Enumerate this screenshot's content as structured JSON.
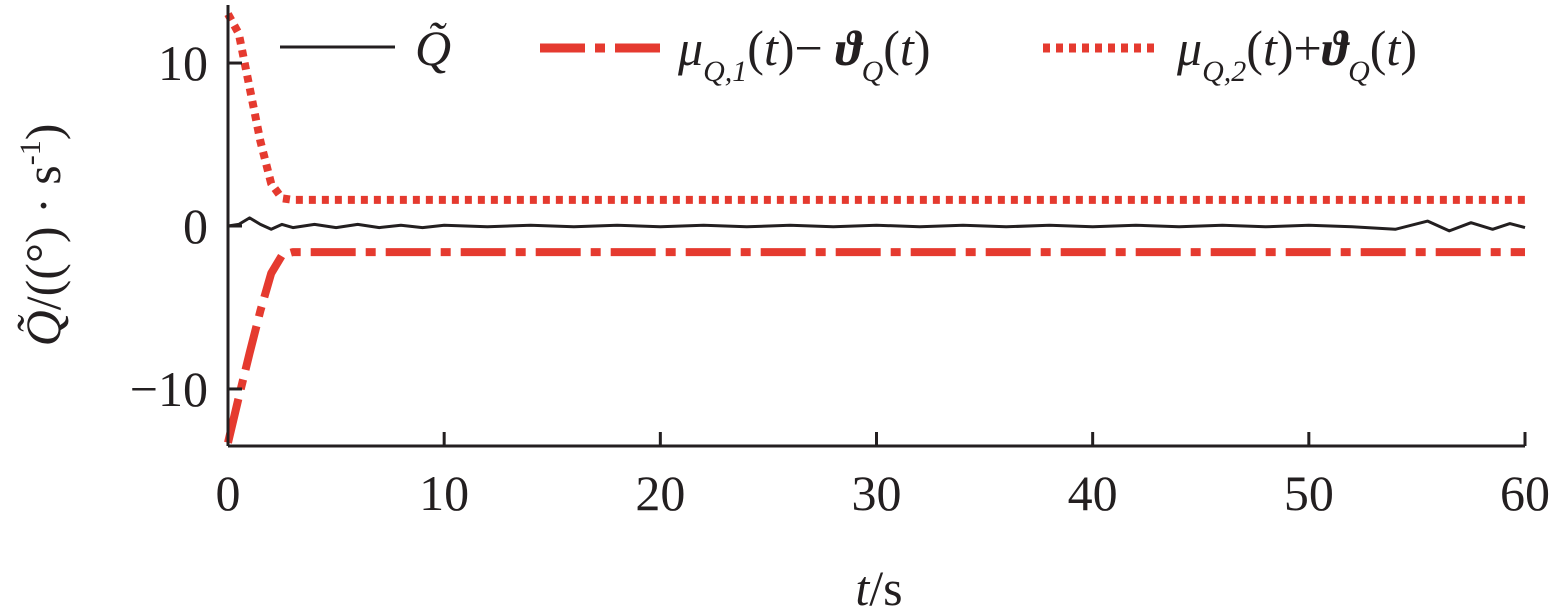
{
  "chart_data": {
    "type": "line",
    "xlabel": {
      "var": "t",
      "unit": "/s"
    },
    "ylabel": {
      "var": "Q̃",
      "unit": "/((°) · s",
      "exp": "-1",
      "close": ")"
    },
    "xlim": [
      0,
      60
    ],
    "ylim": [
      -13.5,
      13.5
    ],
    "xticks": [
      0,
      10,
      20,
      30,
      40,
      50,
      60
    ],
    "xtick_labels": [
      "0",
      "10",
      "20",
      "30",
      "40",
      "50",
      "60"
    ],
    "yticks": [
      -10,
      0,
      10
    ],
    "ytick_labels": [
      "−10",
      "0",
      "10"
    ],
    "grid": false,
    "legend_position": "top",
    "series": [
      {
        "name": "Q̃",
        "style": "solid",
        "color": "#231f20",
        "x": [
          0,
          0.5,
          1.0,
          1.5,
          2.0,
          2.5,
          3,
          4,
          5,
          6,
          7,
          8,
          9,
          10,
          12,
          14,
          16,
          18,
          20,
          22,
          24,
          26,
          28,
          30,
          32,
          34,
          36,
          38,
          40,
          42,
          44,
          46,
          48,
          50,
          52,
          54,
          55.5,
          56.5,
          57.5,
          58.5,
          59.3,
          60
        ],
        "y": [
          0,
          0.1,
          0.5,
          0.1,
          -0.2,
          0.1,
          -0.1,
          0.1,
          -0.1,
          0.1,
          -0.1,
          0.05,
          -0.1,
          0.05,
          -0.05,
          0.05,
          -0.05,
          0.05,
          -0.05,
          0.05,
          -0.05,
          0.05,
          -0.05,
          0.05,
          -0.05,
          0.05,
          -0.05,
          0.05,
          -0.05,
          0.05,
          -0.05,
          0.05,
          -0.05,
          0.05,
          -0.05,
          -0.2,
          0.3,
          -0.3,
          0.2,
          -0.2,
          0.15,
          -0.1
        ]
      },
      {
        "name": "μ_{Q,1}(t)− ϑ_Q(t)",
        "style": "dashdot",
        "color": "#e53a2f",
        "x": [
          0,
          0.5,
          1.0,
          1.5,
          2.0,
          2.5,
          3,
          60
        ],
        "y": [
          -13.3,
          -10.5,
          -7.8,
          -5.2,
          -2.9,
          -1.8,
          -1.6,
          -1.6
        ]
      },
      {
        "name": "μ_{Q,2}(t)+ϑ_Q(t)",
        "style": "dotted",
        "color": "#e53a2f",
        "x": [
          0,
          0.5,
          1.0,
          1.5,
          2.0,
          2.5,
          3,
          60
        ],
        "y": [
          13.0,
          11.8,
          8.5,
          5.2,
          2.6,
          1.7,
          1.6,
          1.6
        ]
      }
    ]
  }
}
